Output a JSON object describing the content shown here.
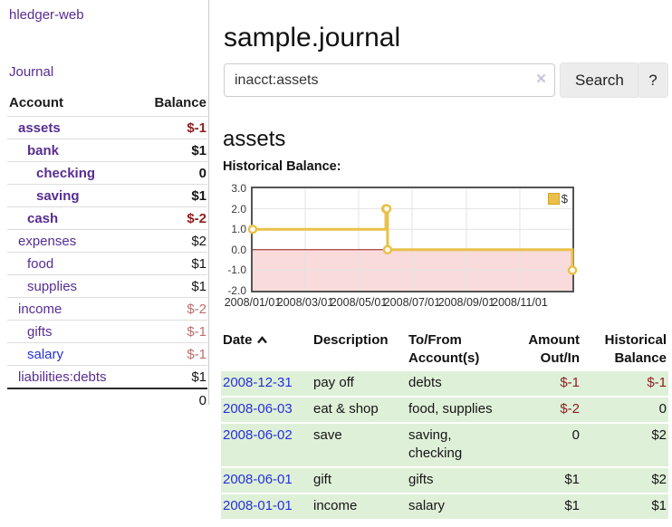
{
  "app_title": "hledger-web",
  "sidebar": {
    "journal_link": "Journal",
    "headers": {
      "account": "Account",
      "balance": "Balance"
    },
    "accounts": [
      {
        "label": "assets",
        "depth": 0,
        "bold": true,
        "link_color": "purple",
        "balance": "$-1",
        "balance_style": "neg"
      },
      {
        "label": "bank",
        "depth": 1,
        "bold": true,
        "link_color": "purple",
        "balance": "$1",
        "balance_style": "pos"
      },
      {
        "label": "checking",
        "depth": 2,
        "bold": true,
        "link_color": "purple",
        "balance": "0",
        "balance_style": "pos"
      },
      {
        "label": "saving",
        "depth": 2,
        "bold": true,
        "link_color": "purple",
        "balance": "$1",
        "balance_style": "pos"
      },
      {
        "label": "cash",
        "depth": 1,
        "bold": true,
        "link_color": "purple",
        "balance": "$-2",
        "balance_style": "neg"
      },
      {
        "label": "expenses",
        "depth": 0,
        "bold": false,
        "link_color": "purple",
        "balance": "$2",
        "balance_style": "pos"
      },
      {
        "label": "food",
        "depth": 1,
        "bold": false,
        "link_color": "purple",
        "balance": "$1",
        "balance_style": "pos"
      },
      {
        "label": "supplies",
        "depth": 1,
        "bold": false,
        "link_color": "purple",
        "balance": "$1",
        "balance_style": "pos"
      },
      {
        "label": "income",
        "depth": 0,
        "bold": false,
        "link_color": "purple",
        "balance": "$-2",
        "balance_style": "negl"
      },
      {
        "label": "gifts",
        "depth": 1,
        "bold": false,
        "link_color": "purple",
        "balance": "$-1",
        "balance_style": "negl"
      },
      {
        "label": "salary",
        "depth": 1,
        "bold": false,
        "link_color": "blue",
        "balance": "$-1",
        "balance_style": "negl"
      },
      {
        "label": "liabilities:debts",
        "depth": 0,
        "bold": false,
        "link_color": "purple",
        "balance": "$1",
        "balance_style": "pos"
      }
    ],
    "total": "0"
  },
  "main": {
    "title": "sample.journal",
    "search": {
      "value": "inacct:assets",
      "clear_icon": "×",
      "search_button": "Search",
      "help_button": "?"
    },
    "account_heading": "assets",
    "chart_label": "Historical Balance:"
  },
  "chart_data": {
    "type": "line",
    "step": true,
    "title": "Historical Balance",
    "series": [
      {
        "name": "$",
        "color": "#e9c14a",
        "x": [
          "2008-01-01",
          "2008-06-01",
          "2008-06-02",
          "2008-06-03",
          "2008-12-31"
        ],
        "y": [
          1,
          2,
          2,
          0,
          -1
        ]
      }
    ],
    "ylim": [
      -2,
      3
    ],
    "yticks": [
      "3.0",
      "2.0",
      "1.0",
      "0.0",
      "-1.0",
      "-2.0"
    ],
    "xticks": [
      "2008/01/01",
      "2008/03/01",
      "2008/05/01",
      "2008/07/01",
      "2008/09/01",
      "2008/11/01"
    ],
    "legend": {
      "label": "$",
      "position": "top-right"
    },
    "colors": {
      "negative_region": "#f9dbdb",
      "zero_line": "#941616",
      "grid": "#e3e3e3",
      "border": "#545454"
    }
  },
  "register": {
    "headers": {
      "date": "Date",
      "description": "Description",
      "tofrom": "To/From Account(s)",
      "amount": "Amount Out/In",
      "balance": "Historical Balance"
    },
    "rows": [
      {
        "date": "2008-12-31",
        "description": "pay off",
        "accounts": "debts",
        "amount": "$-1",
        "amount_negative": true,
        "balance": "$-1",
        "balance_negative": true
      },
      {
        "date": "2008-06-03",
        "description": "eat & shop",
        "accounts": "food, supplies",
        "amount": "$-2",
        "amount_negative": true,
        "balance": "0",
        "balance_negative": false
      },
      {
        "date": "2008-06-02",
        "description": "save",
        "accounts": "saving,\nchecking",
        "amount": "0",
        "amount_negative": false,
        "balance": "$2",
        "balance_negative": false
      },
      {
        "date": "2008-06-01",
        "description": "gift",
        "accounts": "gifts",
        "amount": "$1",
        "amount_negative": false,
        "balance": "$2",
        "balance_negative": false
      },
      {
        "date": "2008-01-01",
        "description": "income",
        "accounts": "salary",
        "amount": "$1",
        "amount_negative": false,
        "balance": "$1",
        "balance_negative": false
      }
    ]
  },
  "colors": {
    "link_purple": "#572d93",
    "link_blue": "#2531dd",
    "negative": "#8b1e1e",
    "negative_light": "#b96e6e",
    "row_green": "#dff0d8",
    "accent_gold": "#e9c14a"
  }
}
